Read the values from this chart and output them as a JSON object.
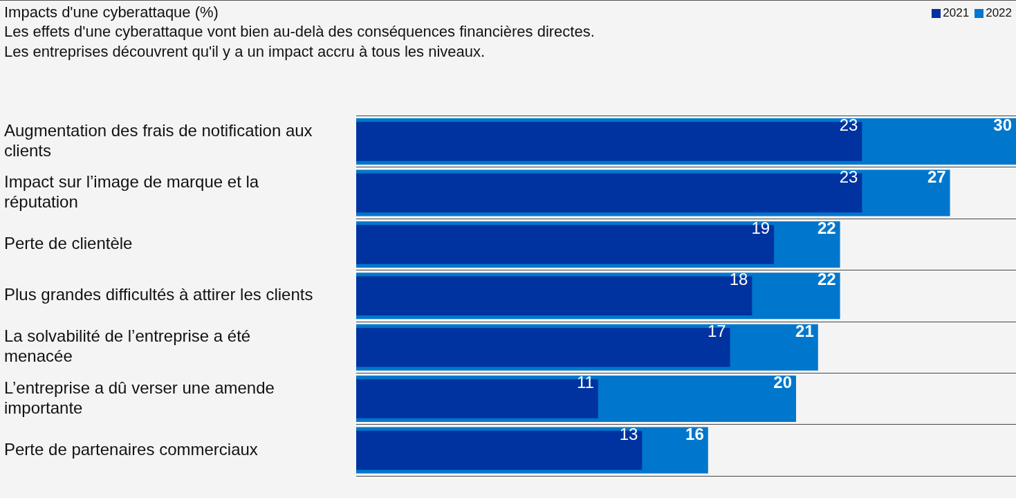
{
  "chart_data": {
    "type": "bar",
    "orientation": "horizontal",
    "title": "Impacts d'une cyberattaque (%)",
    "subtitle": "Les effets d'une cyberattaque vont bien au-delà des conséquences financières directes.\nLes entreprises découvrent qu'il y a un impact accru à tous les niveaux.",
    "categories": [
      "Augmentation des frais de notification aux clients",
      "Impact sur l’image de marque et la réputation",
      "Perte de clientèle",
      "Plus grandes difficultés à attirer les clients",
      "La solvabilité de l’entreprise a été menacée",
      "L’entreprise a dû verser une amende importante",
      "Perte de partenaires commerciaux"
    ],
    "series": [
      {
        "name": "2021",
        "color": "#0033a0",
        "values": [
          23,
          23,
          19,
          18,
          17,
          11,
          13
        ]
      },
      {
        "name": "2022",
        "color": "#0077cc",
        "values": [
          30,
          27,
          22,
          22,
          21,
          20,
          16
        ]
      }
    ],
    "xlim": [
      0,
      30
    ],
    "tick_labels": "y",
    "grid": "y",
    "legend": "top right",
    "data_labels": true
  }
}
